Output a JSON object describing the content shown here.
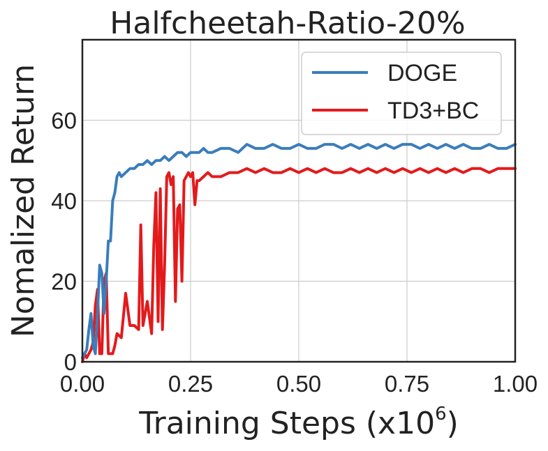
{
  "chart_data": {
    "type": "line",
    "title": "Halfcheetah-Ratio-20%",
    "xlabel_main": "Training Steps (x",
    "xlabel_base": "10",
    "xlabel_exp": "6",
    "xlabel_close": ")",
    "ylabel": "Nomalized Return",
    "xlim": [
      0,
      1.0
    ],
    "ylim": [
      0,
      80
    ],
    "xticks": [
      0,
      0.25,
      0.5,
      0.75,
      1.0
    ],
    "xtick_labels": [
      "0.00",
      "0.25",
      "0.50",
      "0.75",
      "1.00"
    ],
    "yticks": [
      0,
      20,
      40,
      60
    ],
    "ytick_labels": [
      "0",
      "20",
      "40",
      "60"
    ],
    "grid": true,
    "legend_position": "top-right",
    "series": [
      {
        "name": "DOGE",
        "color": "#3a7dbb",
        "x": [
          0,
          0.005,
          0.01,
          0.015,
          0.02,
          0.025,
          0.03,
          0.035,
          0.04,
          0.045,
          0.05,
          0.055,
          0.06,
          0.065,
          0.07,
          0.075,
          0.08,
          0.085,
          0.09,
          0.1,
          0.11,
          0.12,
          0.13,
          0.14,
          0.15,
          0.16,
          0.17,
          0.18,
          0.19,
          0.2,
          0.21,
          0.22,
          0.23,
          0.24,
          0.25,
          0.26,
          0.27,
          0.28,
          0.29,
          0.3,
          0.32,
          0.34,
          0.36,
          0.38,
          0.4,
          0.42,
          0.44,
          0.46,
          0.48,
          0.5,
          0.52,
          0.54,
          0.56,
          0.58,
          0.6,
          0.62,
          0.64,
          0.66,
          0.68,
          0.7,
          0.72,
          0.74,
          0.76,
          0.78,
          0.8,
          0.82,
          0.84,
          0.86,
          0.88,
          0.9,
          0.92,
          0.94,
          0.96,
          0.98,
          1.0
        ],
        "values": [
          1,
          2,
          3,
          8,
          12,
          4,
          2,
          12,
          24,
          22,
          12,
          20,
          30,
          30,
          40,
          42,
          46,
          47,
          46,
          47,
          48,
          48,
          49,
          49,
          50,
          49,
          50,
          50,
          51,
          50,
          51,
          52,
          52,
          51,
          52,
          52,
          52,
          53,
          52,
          52,
          53,
          53,
          52,
          54,
          53,
          53,
          54,
          53,
          53,
          54,
          53,
          53,
          54,
          54,
          53,
          54,
          53,
          54,
          53,
          54,
          53,
          54,
          54,
          53,
          54,
          53,
          54,
          53,
          54,
          53,
          53,
          54,
          53,
          53,
          54
        ]
      },
      {
        "name": "TD3+BC",
        "color": "#e31a1c",
        "x": [
          0,
          0.005,
          0.01,
          0.015,
          0.02,
          0.025,
          0.03,
          0.035,
          0.04,
          0.045,
          0.05,
          0.055,
          0.06,
          0.065,
          0.07,
          0.075,
          0.08,
          0.09,
          0.1,
          0.11,
          0.12,
          0.13,
          0.135,
          0.14,
          0.15,
          0.16,
          0.165,
          0.17,
          0.175,
          0.18,
          0.185,
          0.19,
          0.195,
          0.2,
          0.205,
          0.21,
          0.215,
          0.22,
          0.225,
          0.23,
          0.235,
          0.24,
          0.245,
          0.25,
          0.255,
          0.26,
          0.265,
          0.27,
          0.28,
          0.29,
          0.3,
          0.32,
          0.34,
          0.36,
          0.38,
          0.4,
          0.42,
          0.44,
          0.46,
          0.48,
          0.5,
          0.52,
          0.54,
          0.56,
          0.58,
          0.6,
          0.62,
          0.64,
          0.66,
          0.68,
          0.7,
          0.72,
          0.74,
          0.76,
          0.78,
          0.8,
          0.82,
          0.84,
          0.86,
          0.88,
          0.9,
          0.92,
          0.94,
          0.96,
          0.98,
          1.0
        ],
        "values": [
          0,
          2,
          1,
          2,
          3,
          5,
          14,
          18,
          2,
          2,
          20,
          22,
          2,
          2,
          2,
          4,
          7,
          6,
          17,
          9,
          9,
          8,
          34,
          9,
          15,
          7,
          29,
          42,
          10,
          43,
          8,
          24,
          46,
          47,
          44,
          46,
          15,
          38,
          39,
          20,
          45,
          46,
          47,
          46,
          47,
          39,
          45,
          45,
          46,
          47,
          46,
          46,
          47,
          47,
          48,
          47,
          48,
          47,
          47,
          48,
          47,
          48,
          47,
          48,
          47,
          47,
          48,
          47,
          48,
          47,
          48,
          47,
          48,
          47,
          48,
          47,
          48,
          47,
          48,
          47,
          48,
          48,
          47,
          48,
          48,
          48
        ]
      }
    ]
  }
}
